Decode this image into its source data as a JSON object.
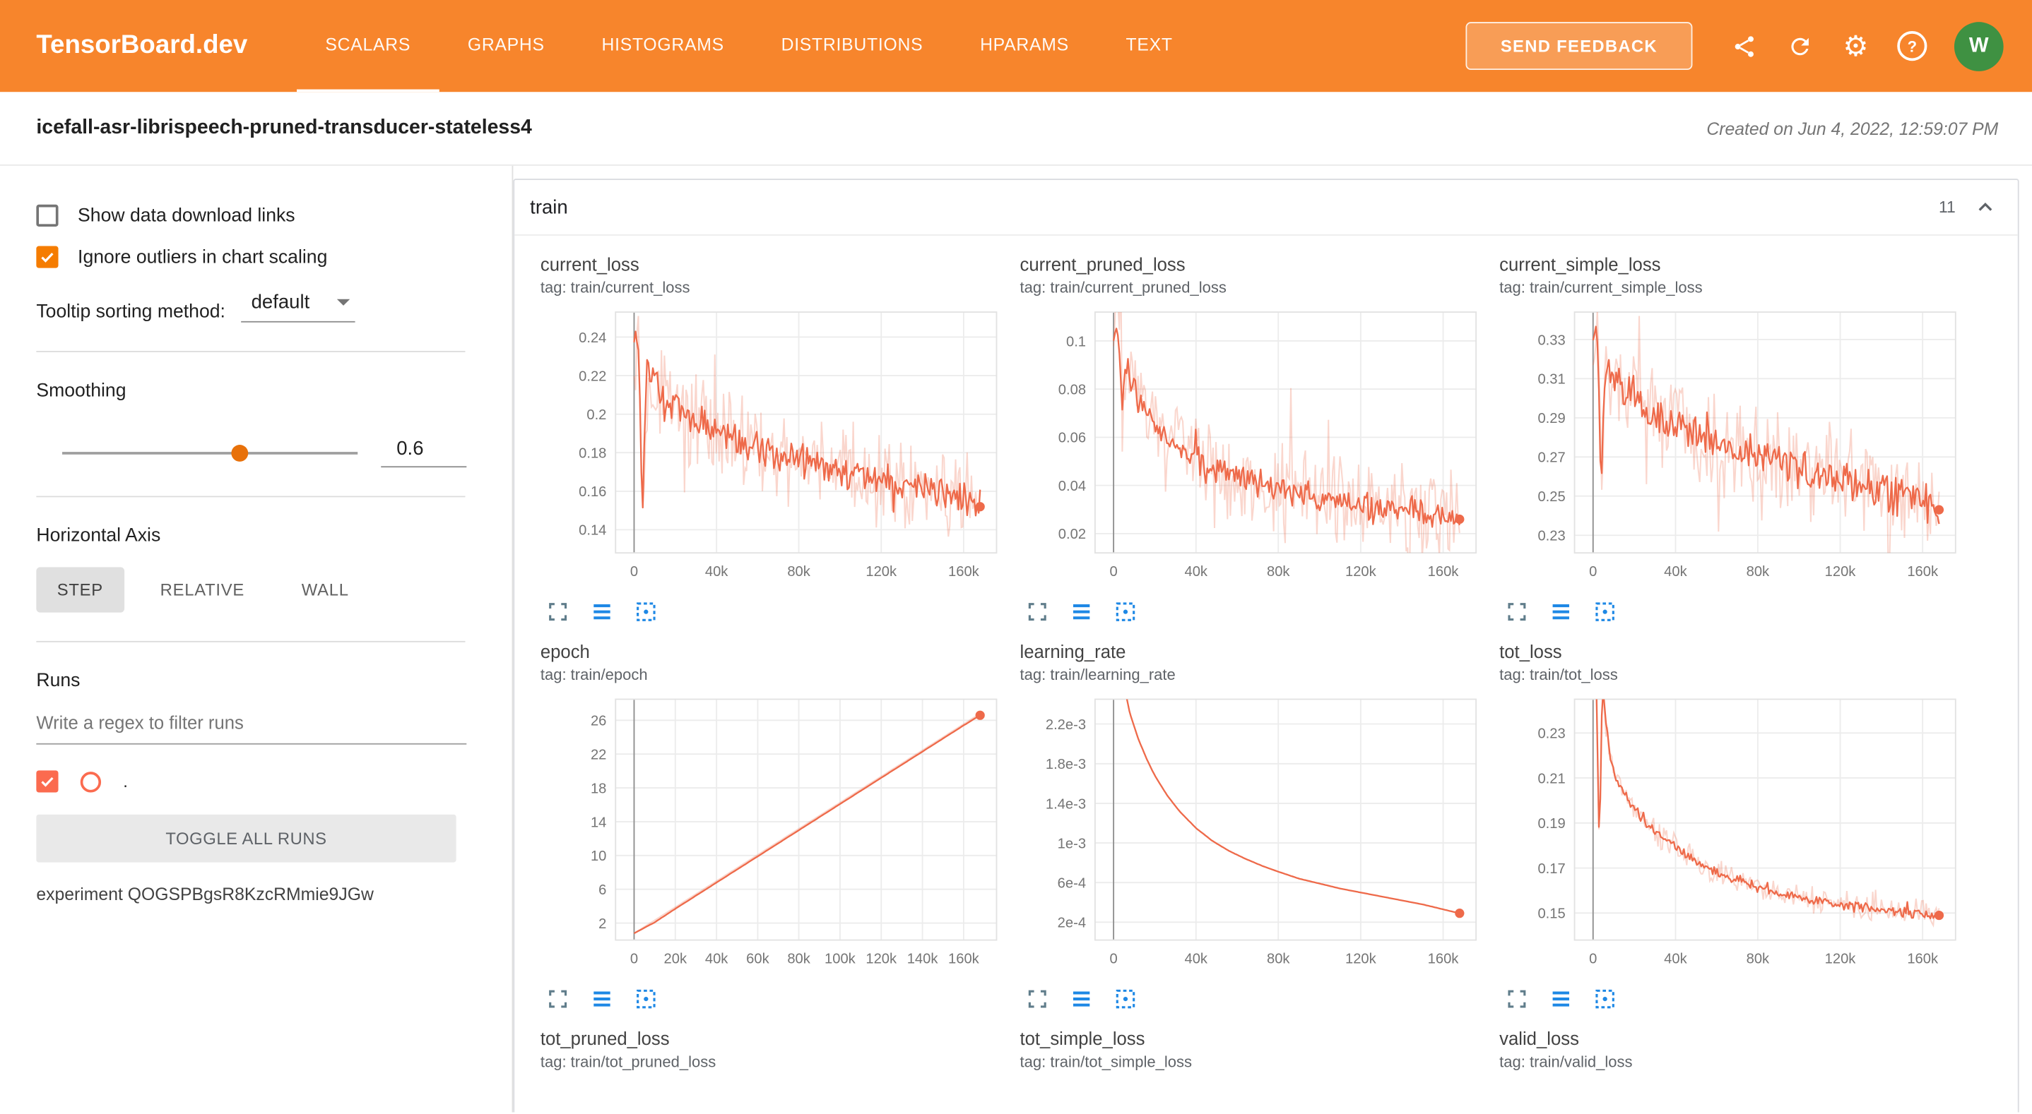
{
  "header": {
    "logo": "TensorBoard.dev",
    "tabs": [
      {
        "label": "SCALARS",
        "active": true
      },
      {
        "label": "GRAPHS",
        "active": false
      },
      {
        "label": "HISTOGRAMS",
        "active": false
      },
      {
        "label": "DISTRIBUTIONS",
        "active": false
      },
      {
        "label": "HPARAMS",
        "active": false
      },
      {
        "label": "TEXT",
        "active": false
      }
    ],
    "send_feedback": "SEND FEEDBACK",
    "icons": [
      "share-icon",
      "refresh-icon",
      "settings-icon",
      "help-icon"
    ],
    "avatar": "W",
    "colors": {
      "bar_bg": "#f7852c",
      "avatar_bg": "#3f9142"
    }
  },
  "subheader": {
    "title": "icefall-asr-librispeech-pruned-transducer-stateless4",
    "created": "Created on Jun 4, 2022, 12:59:07 PM"
  },
  "sidebar": {
    "show_download_label": "Show data download links",
    "show_download_checked": false,
    "ignore_outliers_label": "Ignore outliers in chart scaling",
    "ignore_outliers_checked": true,
    "tooltip_sort_label": "Tooltip sorting method:",
    "tooltip_sort_value": "default",
    "smoothing_label": "Smoothing",
    "smoothing_value": "0.6",
    "horizontal_axis_label": "Horizontal Axis",
    "axis_buttons": [
      {
        "label": "STEP",
        "active": true
      },
      {
        "label": "RELATIVE",
        "active": false
      },
      {
        "label": "WALL",
        "active": false
      }
    ],
    "runs_label": "Runs",
    "filter_placeholder": "Write a regex to filter runs",
    "run_checked": true,
    "run_name": ".",
    "toggle_all": "TOGGLE ALL RUNS",
    "experiment": "experiment QOGSPBgsR8KzcRMmie9JGw",
    "accent": "#f57c00",
    "run_color": "#fb6b4f"
  },
  "main": {
    "group_title": "train",
    "group_count": "11",
    "chart_action_icons": [
      "expand-icon",
      "data-table-icon",
      "fit-domain-icon"
    ]
  },
  "chart_data": [
    {
      "type": "line",
      "title": "current_loss",
      "tag": "tag: train/current_loss",
      "color": "#ee6a4a",
      "xlim": [
        -9000,
        176000
      ],
      "ylim": [
        0.128,
        0.253
      ],
      "x_ticks": [
        {
          "v": 0,
          "label": "0"
        },
        {
          "v": 40000,
          "label": "40k"
        },
        {
          "v": 80000,
          "label": "80k"
        },
        {
          "v": 120000,
          "label": "120k"
        },
        {
          "v": 160000,
          "label": "160k"
        }
      ],
      "y_ticks": [
        {
          "v": 0.14,
          "label": "0.14"
        },
        {
          "v": 0.16,
          "label": "0.16"
        },
        {
          "v": 0.18,
          "label": "0.18"
        },
        {
          "v": 0.2,
          "label": "0.2"
        },
        {
          "v": 0.22,
          "label": "0.22"
        },
        {
          "v": 0.24,
          "label": "0.24"
        }
      ],
      "noise": 0.007,
      "raw_noise": 0.02,
      "end_dot": true,
      "points": [
        [
          0,
          0.238
        ],
        [
          2000,
          0.242
        ],
        [
          4000,
          0.145
        ],
        [
          6000,
          0.226
        ],
        [
          10000,
          0.215
        ],
        [
          15000,
          0.208
        ],
        [
          20000,
          0.202
        ],
        [
          30000,
          0.196
        ],
        [
          40000,
          0.19
        ],
        [
          50000,
          0.186
        ],
        [
          60000,
          0.182
        ],
        [
          70000,
          0.179
        ],
        [
          80000,
          0.176
        ],
        [
          90000,
          0.173
        ],
        [
          100000,
          0.17
        ],
        [
          110000,
          0.168
        ],
        [
          120000,
          0.166
        ],
        [
          130000,
          0.164
        ],
        [
          140000,
          0.162
        ],
        [
          150000,
          0.159
        ],
        [
          160000,
          0.156
        ],
        [
          168000,
          0.152
        ]
      ]
    },
    {
      "type": "line",
      "title": "current_pruned_loss",
      "tag": "tag: train/current_pruned_loss",
      "color": "#ee6a4a",
      "xlim": [
        -9000,
        176000
      ],
      "ylim": [
        0.012,
        0.112
      ],
      "x_ticks": [
        {
          "v": 0,
          "label": "0"
        },
        {
          "v": 40000,
          "label": "40k"
        },
        {
          "v": 80000,
          "label": "80k"
        },
        {
          "v": 120000,
          "label": "120k"
        },
        {
          "v": 160000,
          "label": "160k"
        }
      ],
      "y_ticks": [
        {
          "v": 0.02,
          "label": "0.02"
        },
        {
          "v": 0.04,
          "label": "0.04"
        },
        {
          "v": 0.06,
          "label": "0.06"
        },
        {
          "v": 0.08,
          "label": "0.08"
        },
        {
          "v": 0.1,
          "label": "0.1"
        }
      ],
      "noise": 0.0045,
      "raw_noise": 0.016,
      "end_dot": true,
      "points": [
        [
          0,
          0.102
        ],
        [
          2000,
          0.107
        ],
        [
          4000,
          0.07
        ],
        [
          6000,
          0.09
        ],
        [
          10000,
          0.082
        ],
        [
          15000,
          0.073
        ],
        [
          20000,
          0.066
        ],
        [
          30000,
          0.057
        ],
        [
          40000,
          0.051
        ],
        [
          50000,
          0.047
        ],
        [
          60000,
          0.044
        ],
        [
          70000,
          0.041
        ],
        [
          80000,
          0.039
        ],
        [
          90000,
          0.037
        ],
        [
          100000,
          0.035
        ],
        [
          110000,
          0.033
        ],
        [
          120000,
          0.032
        ],
        [
          130000,
          0.03
        ],
        [
          140000,
          0.029
        ],
        [
          150000,
          0.028
        ],
        [
          160000,
          0.027
        ],
        [
          168000,
          0.026
        ]
      ]
    },
    {
      "type": "line",
      "title": "current_simple_loss",
      "tag": "tag: train/current_simple_loss",
      "color": "#ee6a4a",
      "xlim": [
        -9000,
        176000
      ],
      "ylim": [
        0.221,
        0.344
      ],
      "x_ticks": [
        {
          "v": 0,
          "label": "0"
        },
        {
          "v": 40000,
          "label": "40k"
        },
        {
          "v": 80000,
          "label": "80k"
        },
        {
          "v": 120000,
          "label": "120k"
        },
        {
          "v": 160000,
          "label": "160k"
        }
      ],
      "y_ticks": [
        {
          "v": 0.23,
          "label": "0.23"
        },
        {
          "v": 0.25,
          "label": "0.25"
        },
        {
          "v": 0.27,
          "label": "0.27"
        },
        {
          "v": 0.29,
          "label": "0.29"
        },
        {
          "v": 0.31,
          "label": "0.31"
        },
        {
          "v": 0.33,
          "label": "0.33"
        }
      ],
      "noise": 0.008,
      "raw_noise": 0.021,
      "end_dot": true,
      "points": [
        [
          0,
          0.33
        ],
        [
          2000,
          0.337
        ],
        [
          4000,
          0.25
        ],
        [
          6000,
          0.321
        ],
        [
          10000,
          0.312
        ],
        [
          15000,
          0.305
        ],
        [
          20000,
          0.3
        ],
        [
          30000,
          0.292
        ],
        [
          40000,
          0.286
        ],
        [
          50000,
          0.281
        ],
        [
          60000,
          0.277
        ],
        [
          70000,
          0.273
        ],
        [
          80000,
          0.27
        ],
        [
          90000,
          0.267
        ],
        [
          100000,
          0.264
        ],
        [
          110000,
          0.261
        ],
        [
          120000,
          0.259
        ],
        [
          130000,
          0.256
        ],
        [
          140000,
          0.253
        ],
        [
          150000,
          0.25
        ],
        [
          160000,
          0.247
        ],
        [
          168000,
          0.243
        ]
      ]
    },
    {
      "type": "line",
      "title": "epoch",
      "tag": "tag: train/epoch",
      "color": "#ee6a4a",
      "xlim": [
        -9000,
        176000
      ],
      "ylim": [
        0,
        28.5
      ],
      "x_ticks": [
        {
          "v": 0,
          "label": "0"
        },
        {
          "v": 20000,
          "label": "20k"
        },
        {
          "v": 40000,
          "label": "40k"
        },
        {
          "v": 60000,
          "label": "60k"
        },
        {
          "v": 80000,
          "label": "80k"
        },
        {
          "v": 100000,
          "label": "100k"
        },
        {
          "v": 120000,
          "label": "120k"
        },
        {
          "v": 140000,
          "label": "140k"
        },
        {
          "v": 160000,
          "label": "160k"
        }
      ],
      "y_ticks": [
        {
          "v": 2,
          "label": "2"
        },
        {
          "v": 6,
          "label": "6"
        },
        {
          "v": 10,
          "label": "10"
        },
        {
          "v": 14,
          "label": "14"
        },
        {
          "v": 18,
          "label": "18"
        },
        {
          "v": 22,
          "label": "22"
        },
        {
          "v": 26,
          "label": "26"
        }
      ],
      "noise": 0,
      "raw_noise": 0,
      "end_dot": true,
      "points": [
        [
          0,
          0.8
        ],
        [
          10000,
          2.1
        ],
        [
          20000,
          3.7
        ],
        [
          40000,
          6.8
        ],
        [
          60000,
          9.9
        ],
        [
          80000,
          13.0
        ],
        [
          100000,
          16.1
        ],
        [
          120000,
          19.2
        ],
        [
          140000,
          22.3
        ],
        [
          160000,
          25.4
        ],
        [
          168000,
          26.6
        ]
      ],
      "raw_points": [
        [
          0,
          0.8
        ],
        [
          168000,
          26.8
        ]
      ]
    },
    {
      "type": "line",
      "title": "learning_rate",
      "tag": "tag: train/learning_rate",
      "color": "#ee6a4a",
      "xlim": [
        -9000,
        176000
      ],
      "ylim": [
        2e-05,
        0.00245
      ],
      "x_ticks": [
        {
          "v": 0,
          "label": "0"
        },
        {
          "v": 40000,
          "label": "40k"
        },
        {
          "v": 80000,
          "label": "80k"
        },
        {
          "v": 120000,
          "label": "120k"
        },
        {
          "v": 160000,
          "label": "160k"
        }
      ],
      "y_ticks": [
        {
          "v": 0.0002,
          "label": "2e-4"
        },
        {
          "v": 0.0006,
          "label": "6e-4"
        },
        {
          "v": 0.001,
          "label": "1e-3"
        },
        {
          "v": 0.0014,
          "label": "1.4e-3"
        },
        {
          "v": 0.0018,
          "label": "1.8e-3"
        },
        {
          "v": 0.0022,
          "label": "2.2e-3"
        }
      ],
      "noise": 0,
      "raw_noise": 0,
      "end_dot": true,
      "points": [
        [
          0,
          0.0032
        ],
        [
          4000,
          0.0027
        ],
        [
          8000,
          0.0023
        ],
        [
          12000,
          0.00205
        ],
        [
          16000,
          0.00185
        ],
        [
          20000,
          0.00168
        ],
        [
          26000,
          0.00148
        ],
        [
          32000,
          0.00132
        ],
        [
          40000,
          0.00115
        ],
        [
          48000,
          0.00102
        ],
        [
          56000,
          0.00092
        ],
        [
          64000,
          0.00084
        ],
        [
          72000,
          0.00077
        ],
        [
          80000,
          0.00071
        ],
        [
          90000,
          0.00064
        ],
        [
          100000,
          0.00059
        ],
        [
          110000,
          0.00054
        ],
        [
          120000,
          0.0005
        ],
        [
          130000,
          0.00046
        ],
        [
          140000,
          0.00042
        ],
        [
          150000,
          0.00038
        ],
        [
          160000,
          0.00033
        ],
        [
          168000,
          0.00029
        ]
      ]
    },
    {
      "type": "line",
      "title": "tot_loss",
      "tag": "tag: train/tot_loss",
      "color": "#ee6a4a",
      "xlim": [
        -9000,
        176000
      ],
      "ylim": [
        0.138,
        0.245
      ],
      "x_ticks": [
        {
          "v": 0,
          "label": "0"
        },
        {
          "v": 40000,
          "label": "40k"
        },
        {
          "v": 80000,
          "label": "80k"
        },
        {
          "v": 120000,
          "label": "120k"
        },
        {
          "v": 160000,
          "label": "160k"
        }
      ],
      "y_ticks": [
        {
          "v": 0.15,
          "label": "0.15"
        },
        {
          "v": 0.17,
          "label": "0.17"
        },
        {
          "v": 0.19,
          "label": "0.19"
        },
        {
          "v": 0.21,
          "label": "0.21"
        },
        {
          "v": 0.23,
          "label": "0.23"
        }
      ],
      "noise": 0.0018,
      "raw_noise": 0.005,
      "end_dot": true,
      "points": [
        [
          0,
          0.3
        ],
        [
          1500,
          0.26
        ],
        [
          3000,
          0.178
        ],
        [
          4500,
          0.252
        ],
        [
          6000,
          0.235
        ],
        [
          8000,
          0.222
        ],
        [
          10000,
          0.213
        ],
        [
          15000,
          0.203
        ],
        [
          20000,
          0.196
        ],
        [
          25000,
          0.191
        ],
        [
          30000,
          0.186
        ],
        [
          40000,
          0.179
        ],
        [
          50000,
          0.173
        ],
        [
          60000,
          0.168
        ],
        [
          70000,
          0.1645
        ],
        [
          80000,
          0.1615
        ],
        [
          90000,
          0.159
        ],
        [
          100000,
          0.157
        ],
        [
          110000,
          0.1552
        ],
        [
          120000,
          0.1537
        ],
        [
          130000,
          0.1524
        ],
        [
          140000,
          0.1513
        ],
        [
          150000,
          0.1504
        ],
        [
          160000,
          0.1496
        ],
        [
          168000,
          0.149
        ]
      ]
    },
    {
      "type": "line",
      "title": "tot_pruned_loss",
      "tag": "tag: train/tot_pruned_loss",
      "partial": true
    },
    {
      "type": "line",
      "title": "tot_simple_loss",
      "tag": "tag: train/tot_simple_loss",
      "partial": true
    },
    {
      "type": "line",
      "title": "valid_loss",
      "tag": "tag: train/valid_loss",
      "partial": true
    }
  ]
}
